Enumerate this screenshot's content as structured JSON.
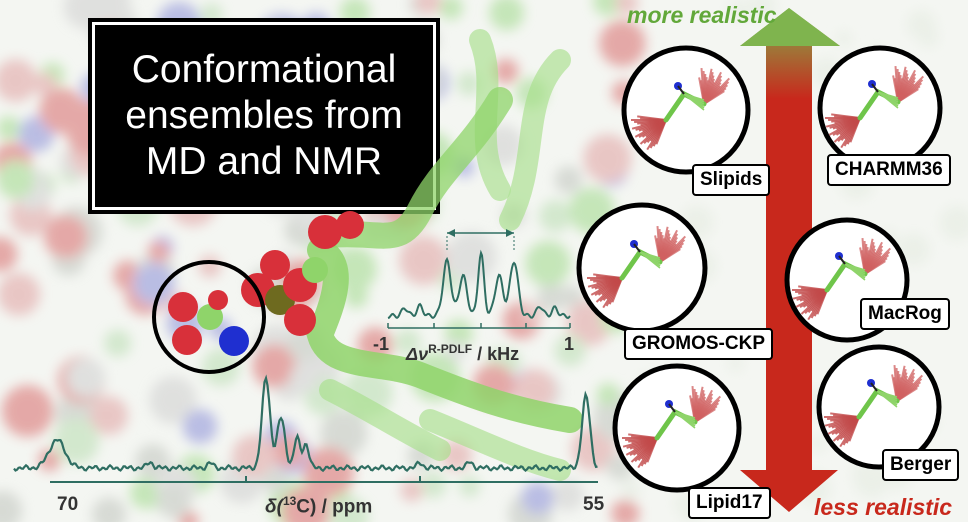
{
  "title": {
    "lines": [
      "Conformational",
      "ensembles from",
      "MD and NMR"
    ]
  },
  "spectrum_13c": {
    "axis_left": "70",
    "axis_right": "55",
    "axis_label_prefix": "δ(",
    "axis_label_sup": "13",
    "axis_label_suffix": "C) / ppm"
  },
  "spectrum_rpdlf": {
    "axis_left": "-1",
    "axis_right": "1",
    "axis_label_prefix": "Δν",
    "axis_label_sup": "R-PDLF",
    "axis_label_suffix": " / kHz"
  },
  "scale": {
    "top_label": "more realistic",
    "bottom_label": "less realistic",
    "top_color": "#62a83a",
    "bottom_color": "#c8281c"
  },
  "force_fields": [
    "Slipids",
    "CHARMM36",
    "GROMOS-CKP",
    "MacRog",
    "Lipid17",
    "Berger"
  ],
  "colors": {
    "spectrum_line": "#2f6e62",
    "glycerol_green": "#8fd46a",
    "oxygen_red": "#d8303a",
    "nitrogen_blue": "#1f2fd0",
    "bundle_red": "#c24a4a"
  },
  "icons": [
    "molecule-background",
    "headgroup-highlight-circle",
    "conformer-bundle-icon"
  ]
}
